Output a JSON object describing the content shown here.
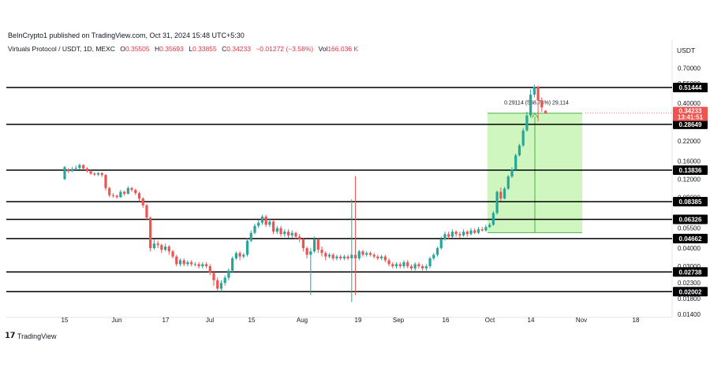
{
  "header": {
    "publisher_line": "BeInCrypto1 published on TradingView.com, Oct 31, 2024 15:48 UTC+5:30"
  },
  "legend": {
    "symbol": "Virtuals Protocol / USDT, 1D, MEXC",
    "o_key": "O",
    "o_val": "0.35505",
    "h_key": "H",
    "h_val": "0.35693",
    "l_key": "L",
    "l_val": "0.33855",
    "c_key": "C",
    "c_val": "0.34233",
    "change": "−0.01272 (−3.58%)",
    "vol_key": "Vol",
    "vol_val": "166.036 K"
  },
  "currency": "USDT",
  "footer": {
    "brand": "TradingView"
  },
  "colors": {
    "up": "#26a69a",
    "down": "#ef5350",
    "measure_fill": "#c8f5b4",
    "measure_line": "#4caf50",
    "level": "#000000",
    "price_tag": "#ef5350"
  },
  "chart_data": {
    "type": "candlestick",
    "y_scale": "log",
    "ylim": [
      0.0138,
      0.84
    ],
    "y_ticks": [
      "0.70000",
      "0.55000",
      "0.40000",
      "0.30000",
      "0.22000",
      "0.16000",
      "0.12000",
      "0.09000",
      "0.05500",
      "0.04000",
      "0.03000",
      "0.02300",
      "0.01800",
      "0.01400"
    ],
    "x_ticks": [
      "15",
      "Jun",
      "17",
      "Jul",
      "15",
      "Aug",
      "19",
      "Sep",
      "16",
      "Oct",
      "14",
      "Nov",
      "18"
    ],
    "levels": [
      "0.51444",
      "0.28649",
      "0.13836",
      "0.08385",
      "0.06326",
      "0.04662",
      "0.02738",
      "0.02002"
    ],
    "current_price": {
      "value": "0.34233",
      "countdown": "13:41:51"
    },
    "measurement": {
      "text": "0.29114 (568.74%) 29,114",
      "from": 0.0512,
      "to": 0.342
    },
    "series": [
      {
        "o": 0.12,
        "c": 0.145,
        "h": 0.148,
        "l": 0.118
      },
      {
        "o": 0.14,
        "c": 0.136,
        "h": 0.143,
        "l": 0.132
      },
      {
        "o": 0.136,
        "c": 0.141,
        "h": 0.146,
        "l": 0.134
      },
      {
        "o": 0.141,
        "c": 0.143,
        "h": 0.149,
        "l": 0.138
      },
      {
        "o": 0.143,
        "c": 0.15,
        "h": 0.154,
        "l": 0.14
      },
      {
        "o": 0.15,
        "c": 0.142,
        "h": 0.152,
        "l": 0.139
      },
      {
        "o": 0.142,
        "c": 0.136,
        "h": 0.145,
        "l": 0.133
      },
      {
        "o": 0.136,
        "c": 0.131,
        "h": 0.139,
        "l": 0.128
      },
      {
        "o": 0.131,
        "c": 0.129,
        "h": 0.134,
        "l": 0.126
      },
      {
        "o": 0.129,
        "c": 0.132,
        "h": 0.134,
        "l": 0.126
      },
      {
        "o": 0.132,
        "c": 0.128,
        "h": 0.134,
        "l": 0.124
      },
      {
        "o": 0.128,
        "c": 0.104,
        "h": 0.13,
        "l": 0.1
      },
      {
        "o": 0.104,
        "c": 0.093,
        "h": 0.106,
        "l": 0.09
      },
      {
        "o": 0.093,
        "c": 0.092,
        "h": 0.096,
        "l": 0.089
      },
      {
        "o": 0.092,
        "c": 0.09,
        "h": 0.094,
        "l": 0.088
      },
      {
        "o": 0.09,
        "c": 0.098,
        "h": 0.101,
        "l": 0.089
      },
      {
        "o": 0.098,
        "c": 0.095,
        "h": 0.1,
        "l": 0.092
      },
      {
        "o": 0.095,
        "c": 0.104,
        "h": 0.107,
        "l": 0.094
      },
      {
        "o": 0.104,
        "c": 0.101,
        "h": 0.106,
        "l": 0.098
      },
      {
        "o": 0.101,
        "c": 0.096,
        "h": 0.103,
        "l": 0.093
      },
      {
        "o": 0.096,
        "c": 0.088,
        "h": 0.098,
        "l": 0.085
      },
      {
        "o": 0.088,
        "c": 0.079,
        "h": 0.09,
        "l": 0.076
      },
      {
        "o": 0.079,
        "c": 0.065,
        "h": 0.081,
        "l": 0.063
      },
      {
        "o": 0.065,
        "c": 0.04,
        "h": 0.066,
        "l": 0.038
      },
      {
        "o": 0.04,
        "c": 0.043,
        "h": 0.046,
        "l": 0.039
      },
      {
        "o": 0.043,
        "c": 0.042,
        "h": 0.045,
        "l": 0.04
      },
      {
        "o": 0.042,
        "c": 0.039,
        "h": 0.043,
        "l": 0.037
      },
      {
        "o": 0.039,
        "c": 0.041,
        "h": 0.043,
        "l": 0.038
      },
      {
        "o": 0.041,
        "c": 0.038,
        "h": 0.042,
        "l": 0.036
      },
      {
        "o": 0.038,
        "c": 0.035,
        "h": 0.039,
        "l": 0.034
      },
      {
        "o": 0.035,
        "c": 0.031,
        "h": 0.036,
        "l": 0.03
      },
      {
        "o": 0.031,
        "c": 0.033,
        "h": 0.034,
        "l": 0.03
      },
      {
        "o": 0.033,
        "c": 0.031,
        "h": 0.034,
        "l": 0.03
      },
      {
        "o": 0.031,
        "c": 0.032,
        "h": 0.033,
        "l": 0.03
      },
      {
        "o": 0.032,
        "c": 0.031,
        "h": 0.033,
        "l": 0.03
      },
      {
        "o": 0.031,
        "c": 0.031,
        "h": 0.032,
        "l": 0.03
      },
      {
        "o": 0.031,
        "c": 0.03,
        "h": 0.032,
        "l": 0.029
      },
      {
        "o": 0.03,
        "c": 0.031,
        "h": 0.032,
        "l": 0.029
      },
      {
        "o": 0.031,
        "c": 0.03,
        "h": 0.032,
        "l": 0.029
      },
      {
        "o": 0.03,
        "c": 0.027,
        "h": 0.031,
        "l": 0.026
      },
      {
        "o": 0.027,
        "c": 0.024,
        "h": 0.028,
        "l": 0.022
      },
      {
        "o": 0.024,
        "c": 0.021,
        "h": 0.025,
        "l": 0.02
      },
      {
        "o": 0.021,
        "c": 0.023,
        "h": 0.024,
        "l": 0.02
      },
      {
        "o": 0.023,
        "c": 0.025,
        "h": 0.026,
        "l": 0.022
      },
      {
        "o": 0.025,
        "c": 0.028,
        "h": 0.029,
        "l": 0.024
      },
      {
        "o": 0.028,
        "c": 0.034,
        "h": 0.035,
        "l": 0.027
      },
      {
        "o": 0.034,
        "c": 0.037,
        "h": 0.038,
        "l": 0.033
      },
      {
        "o": 0.037,
        "c": 0.035,
        "h": 0.038,
        "l": 0.033
      },
      {
        "o": 0.035,
        "c": 0.036,
        "h": 0.037,
        "l": 0.034
      },
      {
        "o": 0.036,
        "c": 0.045,
        "h": 0.047,
        "l": 0.035
      },
      {
        "o": 0.045,
        "c": 0.051,
        "h": 0.053,
        "l": 0.044
      },
      {
        "o": 0.051,
        "c": 0.057,
        "h": 0.059,
        "l": 0.05
      },
      {
        "o": 0.057,
        "c": 0.06,
        "h": 0.063,
        "l": 0.055
      },
      {
        "o": 0.06,
        "c": 0.066,
        "h": 0.068,
        "l": 0.058
      },
      {
        "o": 0.066,
        "c": 0.058,
        "h": 0.068,
        "l": 0.056
      },
      {
        "o": 0.058,
        "c": 0.061,
        "h": 0.064,
        "l": 0.056
      },
      {
        "o": 0.061,
        "c": 0.052,
        "h": 0.063,
        "l": 0.05
      },
      {
        "o": 0.052,
        "c": 0.055,
        "h": 0.057,
        "l": 0.05
      },
      {
        "o": 0.055,
        "c": 0.05,
        "h": 0.057,
        "l": 0.048
      },
      {
        "o": 0.05,
        "c": 0.052,
        "h": 0.054,
        "l": 0.048
      },
      {
        "o": 0.052,
        "c": 0.049,
        "h": 0.054,
        "l": 0.047
      },
      {
        "o": 0.049,
        "c": 0.051,
        "h": 0.053,
        "l": 0.047
      },
      {
        "o": 0.051,
        "c": 0.048,
        "h": 0.052,
        "l": 0.046
      },
      {
        "o": 0.048,
        "c": 0.046,
        "h": 0.05,
        "l": 0.044
      },
      {
        "o": 0.046,
        "c": 0.04,
        "h": 0.047,
        "l": 0.038
      },
      {
        "o": 0.04,
        "c": 0.036,
        "h": 0.041,
        "l": 0.034
      },
      {
        "o": 0.036,
        "c": 0.038,
        "h": 0.04,
        "l": 0.019
      },
      {
        "o": 0.038,
        "c": 0.046,
        "h": 0.048,
        "l": 0.037
      },
      {
        "o": 0.046,
        "c": 0.039,
        "h": 0.047,
        "l": 0.037
      },
      {
        "o": 0.039,
        "c": 0.037,
        "h": 0.041,
        "l": 0.035
      },
      {
        "o": 0.037,
        "c": 0.035,
        "h": 0.038,
        "l": 0.033
      },
      {
        "o": 0.035,
        "c": 0.036,
        "h": 0.037,
        "l": 0.034
      },
      {
        "o": 0.036,
        "c": 0.034,
        "h": 0.037,
        "l": 0.033
      },
      {
        "o": 0.034,
        "c": 0.035,
        "h": 0.036,
        "l": 0.033
      },
      {
        "o": 0.035,
        "c": 0.034,
        "h": 0.036,
        "l": 0.033
      },
      {
        "o": 0.034,
        "c": 0.035,
        "h": 0.036,
        "l": 0.033
      },
      {
        "o": 0.035,
        "c": 0.034,
        "h": 0.036,
        "l": 0.033
      },
      {
        "o": 0.034,
        "c": 0.036,
        "h": 0.087,
        "l": 0.017
      },
      {
        "o": 0.036,
        "c": 0.034,
        "h": 0.126,
        "l": 0.019
      },
      {
        "o": 0.034,
        "c": 0.038,
        "h": 0.039,
        "l": 0.033
      },
      {
        "o": 0.038,
        "c": 0.036,
        "h": 0.039,
        "l": 0.035
      },
      {
        "o": 0.036,
        "c": 0.037,
        "h": 0.038,
        "l": 0.035
      },
      {
        "o": 0.037,
        "c": 0.036,
        "h": 0.038,
        "l": 0.035
      },
      {
        "o": 0.036,
        "c": 0.035,
        "h": 0.037,
        "l": 0.034
      },
      {
        "o": 0.035,
        "c": 0.034,
        "h": 0.036,
        "l": 0.033
      },
      {
        "o": 0.034,
        "c": 0.035,
        "h": 0.036,
        "l": 0.033
      },
      {
        "o": 0.035,
        "c": 0.033,
        "h": 0.036,
        "l": 0.032
      },
      {
        "o": 0.033,
        "c": 0.031,
        "h": 0.034,
        "l": 0.03
      },
      {
        "o": 0.031,
        "c": 0.03,
        "h": 0.032,
        "l": 0.029
      },
      {
        "o": 0.03,
        "c": 0.031,
        "h": 0.032,
        "l": 0.029
      },
      {
        "o": 0.031,
        "c": 0.03,
        "h": 0.032,
        "l": 0.029
      },
      {
        "o": 0.03,
        "c": 0.032,
        "h": 0.033,
        "l": 0.029
      },
      {
        "o": 0.032,
        "c": 0.03,
        "h": 0.033,
        "l": 0.029
      },
      {
        "o": 0.03,
        "c": 0.029,
        "h": 0.031,
        "l": 0.028
      },
      {
        "o": 0.029,
        "c": 0.031,
        "h": 0.032,
        "l": 0.028
      },
      {
        "o": 0.031,
        "c": 0.03,
        "h": 0.032,
        "l": 0.029
      },
      {
        "o": 0.03,
        "c": 0.029,
        "h": 0.031,
        "l": 0.028
      },
      {
        "o": 0.029,
        "c": 0.03,
        "h": 0.031,
        "l": 0.028
      },
      {
        "o": 0.03,
        "c": 0.034,
        "h": 0.035,
        "l": 0.029
      },
      {
        "o": 0.034,
        "c": 0.036,
        "h": 0.037,
        "l": 0.033
      },
      {
        "o": 0.036,
        "c": 0.04,
        "h": 0.041,
        "l": 0.035
      },
      {
        "o": 0.04,
        "c": 0.046,
        "h": 0.048,
        "l": 0.039
      },
      {
        "o": 0.046,
        "c": 0.05,
        "h": 0.052,
        "l": 0.045
      },
      {
        "o": 0.05,
        "c": 0.048,
        "h": 0.052,
        "l": 0.046
      },
      {
        "o": 0.048,
        "c": 0.052,
        "h": 0.054,
        "l": 0.047
      },
      {
        "o": 0.052,
        "c": 0.05,
        "h": 0.053,
        "l": 0.048
      },
      {
        "o": 0.05,
        "c": 0.049,
        "h": 0.052,
        "l": 0.047
      },
      {
        "o": 0.049,
        "c": 0.052,
        "h": 0.054,
        "l": 0.048
      },
      {
        "o": 0.052,
        "c": 0.05,
        "h": 0.053,
        "l": 0.048
      },
      {
        "o": 0.05,
        "c": 0.053,
        "h": 0.055,
        "l": 0.049
      },
      {
        "o": 0.053,
        "c": 0.051,
        "h": 0.055,
        "l": 0.05
      },
      {
        "o": 0.051,
        "c": 0.054,
        "h": 0.056,
        "l": 0.05
      },
      {
        "o": 0.054,
        "c": 0.053,
        "h": 0.056,
        "l": 0.052
      },
      {
        "o": 0.053,
        "c": 0.056,
        "h": 0.058,
        "l": 0.052
      },
      {
        "o": 0.056,
        "c": 0.058,
        "h": 0.06,
        "l": 0.055
      },
      {
        "o": 0.058,
        "c": 0.07,
        "h": 0.072,
        "l": 0.057
      },
      {
        "o": 0.07,
        "c": 0.098,
        "h": 0.1,
        "l": 0.068
      },
      {
        "o": 0.098,
        "c": 0.088,
        "h": 0.105,
        "l": 0.085
      },
      {
        "o": 0.088,
        "c": 0.103,
        "h": 0.106,
        "l": 0.087
      },
      {
        "o": 0.103,
        "c": 0.125,
        "h": 0.128,
        "l": 0.101
      },
      {
        "o": 0.125,
        "c": 0.14,
        "h": 0.145,
        "l": 0.122
      },
      {
        "o": 0.14,
        "c": 0.175,
        "h": 0.18,
        "l": 0.138
      },
      {
        "o": 0.175,
        "c": 0.205,
        "h": 0.21,
        "l": 0.172
      },
      {
        "o": 0.205,
        "c": 0.26,
        "h": 0.27,
        "l": 0.2
      },
      {
        "o": 0.26,
        "c": 0.33,
        "h": 0.35,
        "l": 0.255
      },
      {
        "o": 0.33,
        "c": 0.46,
        "h": 0.5,
        "l": 0.32
      },
      {
        "o": 0.46,
        "c": 0.52,
        "h": 0.54,
        "l": 0.44
      },
      {
        "o": 0.52,
        "c": 0.42,
        "h": 0.53,
        "l": 0.3
      },
      {
        "o": 0.42,
        "c": 0.375,
        "h": 0.44,
        "l": 0.35
      },
      {
        "o": 0.356,
        "c": 0.342,
        "h": 0.357,
        "l": 0.339
      }
    ]
  }
}
